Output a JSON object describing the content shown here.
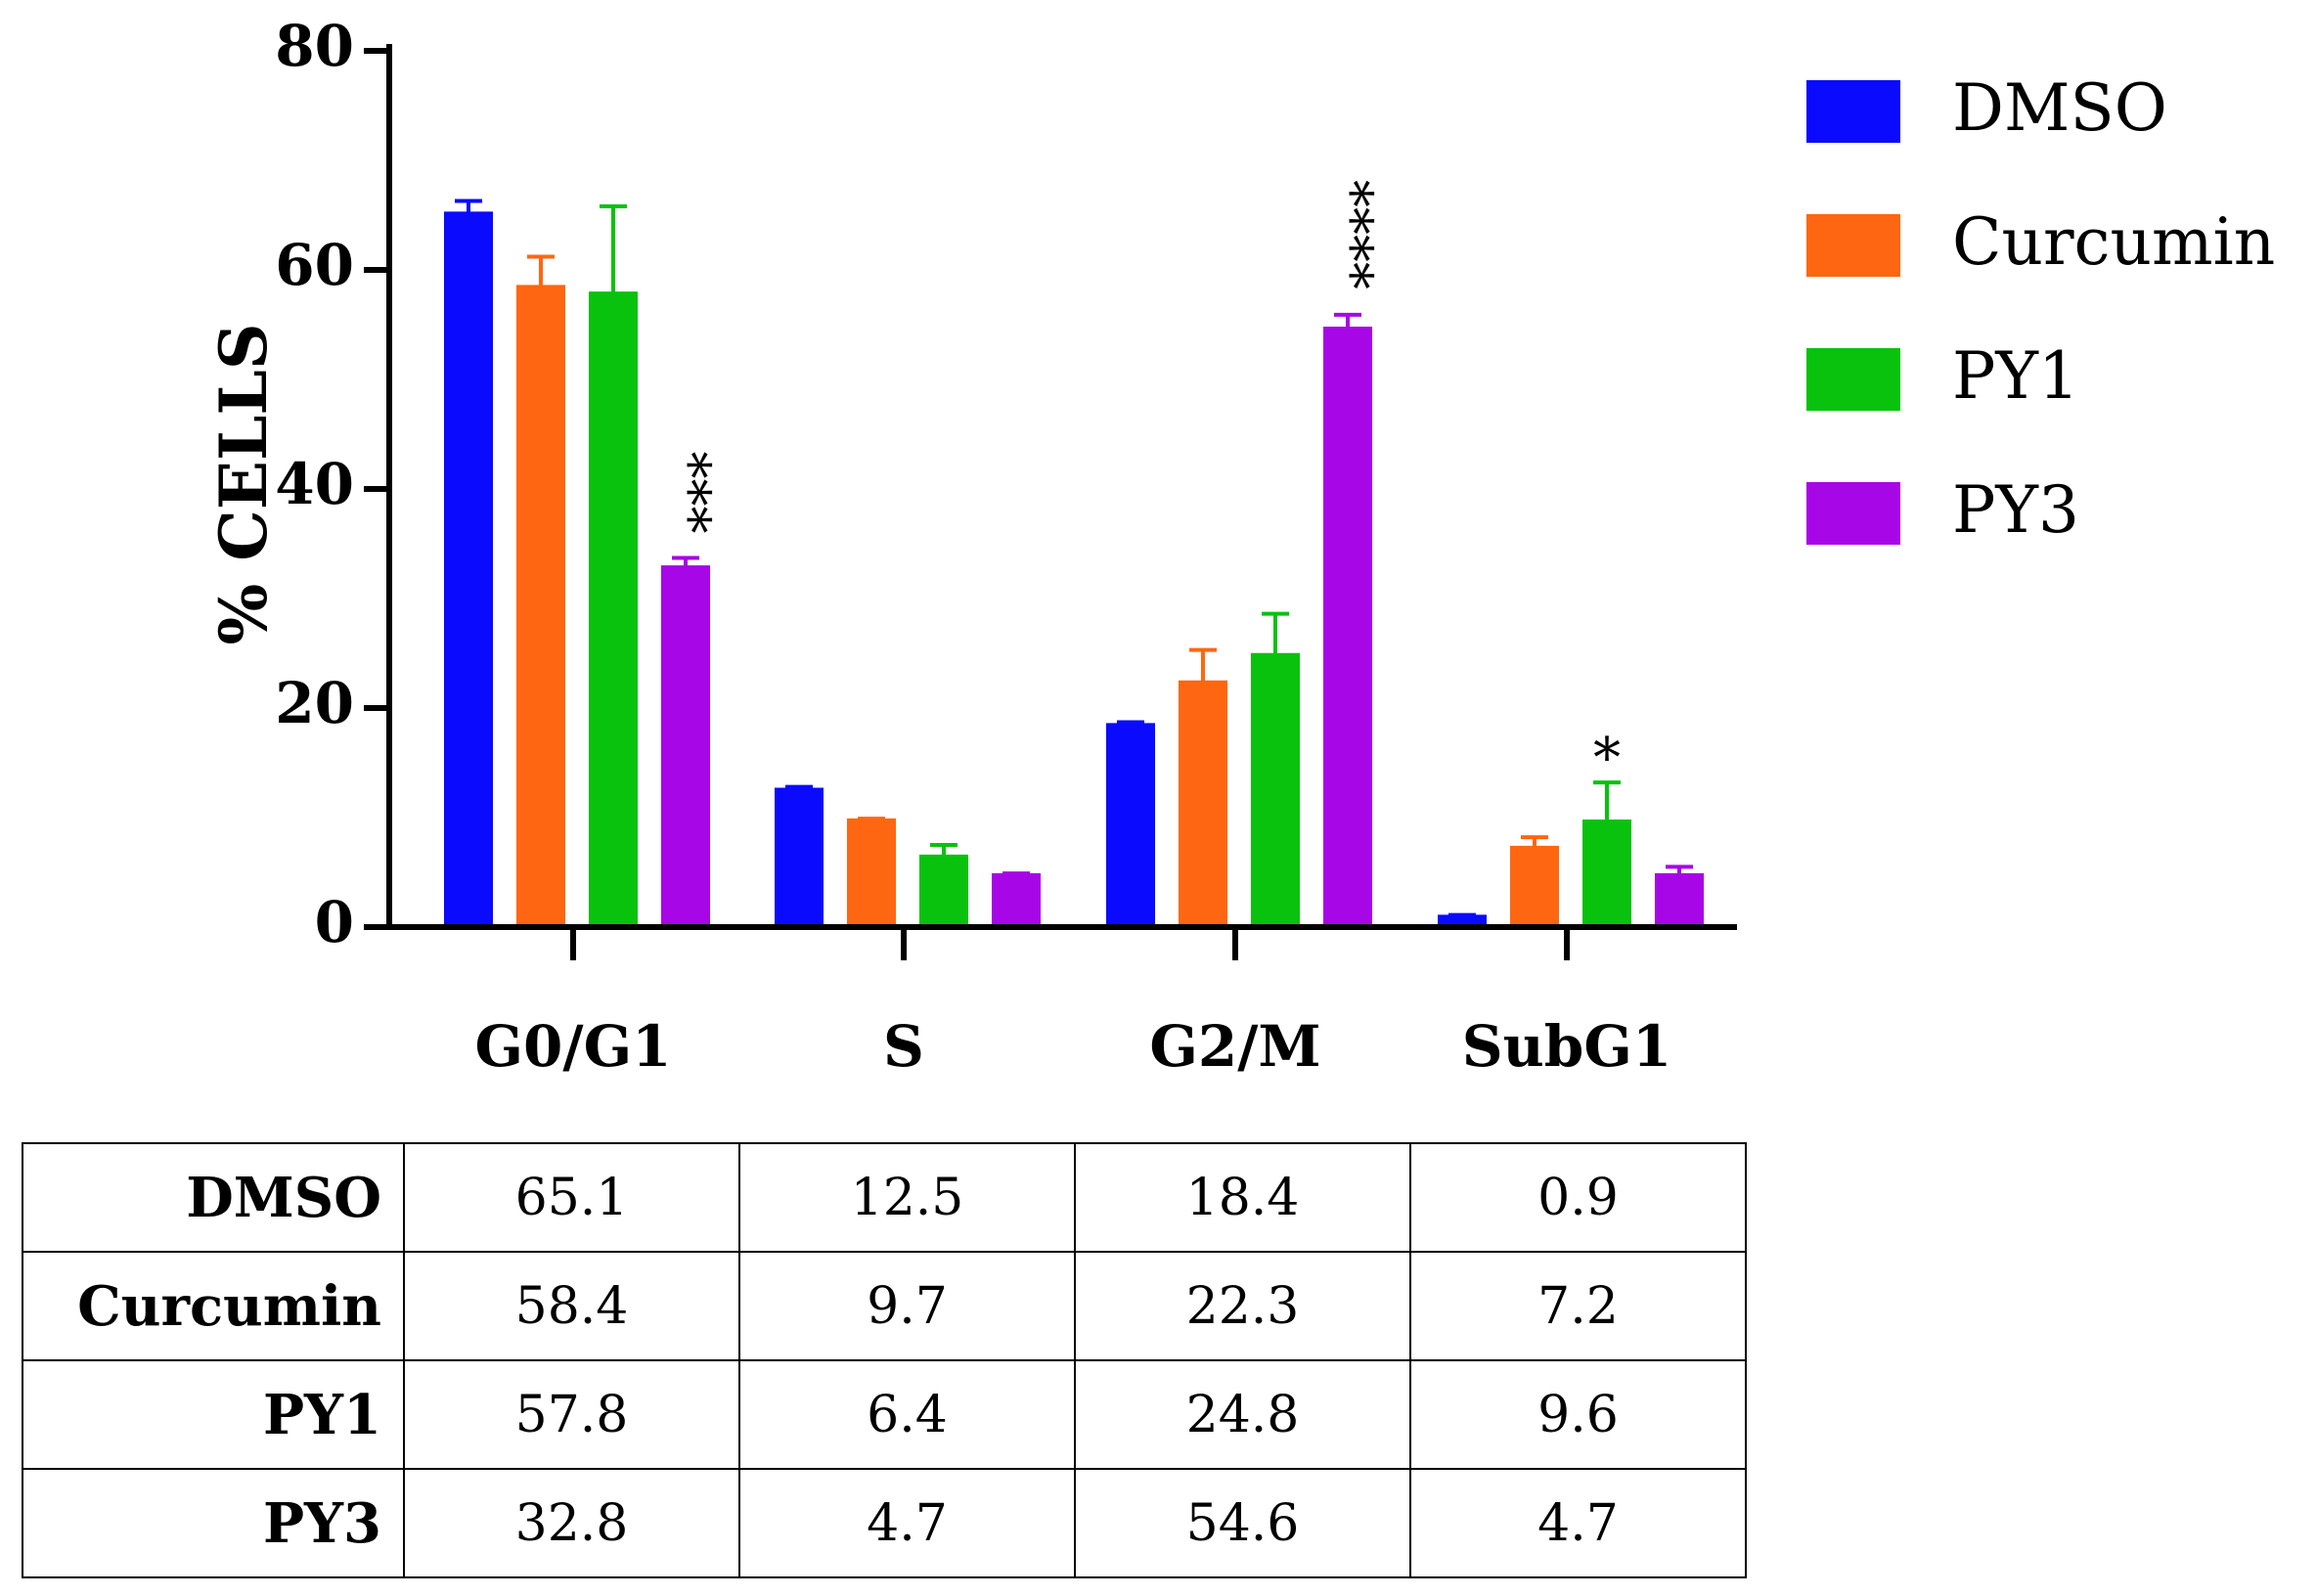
{
  "chart_data": {
    "type": "bar",
    "title": "",
    "xlabel": "",
    "ylabel": "% CELLS",
    "ylim": [
      0,
      80
    ],
    "yticks": [
      0,
      20,
      40,
      60,
      80
    ],
    "categories": [
      "G0/G1",
      "S",
      "G2/M",
      "SubG1"
    ],
    "series": [
      {
        "name": "DMSO",
        "color": "#0a0aff",
        "values": [
          65.1,
          12.5,
          18.4,
          0.9
        ],
        "errors": [
          1.2,
          0.3,
          0.3,
          0.2
        ]
      },
      {
        "name": "Curcumin",
        "color": "#ff6611",
        "values": [
          58.4,
          9.7,
          22.3,
          7.2
        ],
        "errors": [
          2.8,
          0.2,
          3.0,
          1.0
        ]
      },
      {
        "name": "PY1",
        "color": "#08c20d",
        "values": [
          57.8,
          6.4,
          24.8,
          9.6
        ],
        "errors": [
          8.0,
          1.1,
          3.8,
          3.6
        ]
      },
      {
        "name": "PY3",
        "color": "#a707e6",
        "values": [
          32.8,
          4.7,
          54.6,
          4.7
        ],
        "errors": [
          0.9,
          0.2,
          1.3,
          0.8
        ]
      }
    ],
    "annotations": [
      {
        "text": "***",
        "series": "PY3",
        "category": "G0/G1"
      },
      {
        "text": "****",
        "series": "PY3",
        "category": "G2/M"
      },
      {
        "text": "*",
        "series": "PY1",
        "category": "SubG1"
      }
    ],
    "legend_position": "right",
    "table": {
      "rows": [
        {
          "label": "DMSO",
          "values": [
            "65.1",
            "12.5",
            "18.4",
            "0.9"
          ]
        },
        {
          "label": "Curcumin",
          "values": [
            "58.4",
            "9.7",
            "22.3",
            "7.2"
          ]
        },
        {
          "label": "PY1",
          "values": [
            "57.8",
            "6.4",
            "24.8",
            "9.6"
          ]
        },
        {
          "label": "PY3",
          "values": [
            "32.8",
            "4.7",
            "54.6",
            "4.7"
          ]
        }
      ]
    }
  }
}
